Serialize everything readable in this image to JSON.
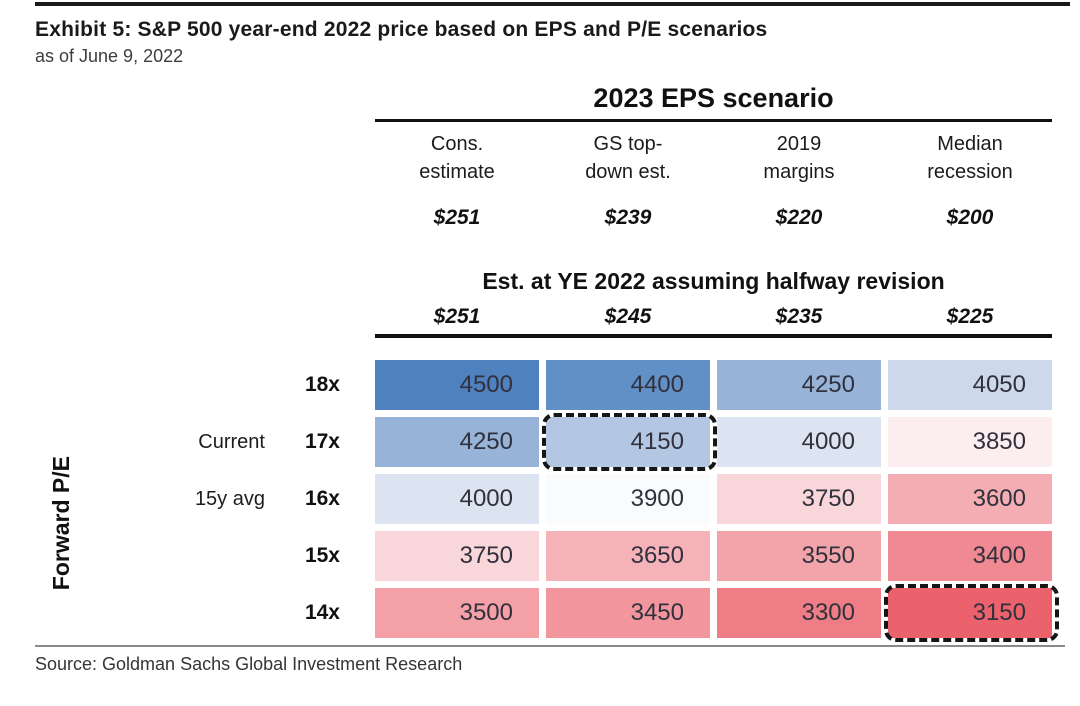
{
  "exhibit": {
    "title": "Exhibit 5: S&P 500 year-end 2022 price based on EPS and P/E scenarios",
    "subtitle": "as of June 9, 2022",
    "source": "Source: Goldman Sachs Global Investment Research"
  },
  "table": {
    "group_header": "2023 EPS scenario",
    "mid_header": "Est. at YE 2022 assuming halfway revision",
    "row_axis_title": "Forward P/E",
    "columns": [
      {
        "line1": "Cons.",
        "line2": "estimate",
        "eps_2023": "$251",
        "eps_ye2022": "$251"
      },
      {
        "line1": "GS top-",
        "line2": "down est.",
        "eps_2023": "$239",
        "eps_ye2022": "$245"
      },
      {
        "line1": "2019",
        "line2": "margins",
        "eps_2023": "$220",
        "eps_ye2022": "$235"
      },
      {
        "line1": "Median",
        "line2": "recession",
        "eps_2023": "$200",
        "eps_ye2022": "$225"
      }
    ],
    "rows": [
      {
        "pe": "18x",
        "note": "",
        "cells": [
          {
            "value": "4500",
            "color": "#4e81bd",
            "highlighted": false
          },
          {
            "value": "4400",
            "color": "#6190c6",
            "highlighted": false
          },
          {
            "value": "4250",
            "color": "#97b4d8",
            "highlighted": false
          },
          {
            "value": "4050",
            "color": "#cdd8ea",
            "highlighted": false
          }
        ]
      },
      {
        "pe": "17x",
        "note": "Current",
        "cells": [
          {
            "value": "4250",
            "color": "#97b4d8",
            "highlighted": false
          },
          {
            "value": "4150",
            "color": "#b3c7e2",
            "highlighted": true
          },
          {
            "value": "4000",
            "color": "#dce3f1",
            "highlighted": false
          },
          {
            "value": "3850",
            "color": "#fcedef",
            "highlighted": false
          }
        ]
      },
      {
        "pe": "16x",
        "note": "15y avg",
        "cells": [
          {
            "value": "4000",
            "color": "#dce3f1",
            "highlighted": false
          },
          {
            "value": "3900",
            "color": "#fafbfd",
            "highlighted": false
          },
          {
            "value": "3750",
            "color": "#f8d6da",
            "highlighted": false
          },
          {
            "value": "3600",
            "color": "#f4adb3",
            "highlighted": false
          }
        ]
      },
      {
        "pe": "15x",
        "note": "",
        "cells": [
          {
            "value": "3750",
            "color": "#f8d6da",
            "highlighted": false
          },
          {
            "value": "3650",
            "color": "#f5b3b9",
            "highlighted": false
          },
          {
            "value": "3550",
            "color": "#f3a4ab",
            "highlighted": false
          },
          {
            "value": "3400",
            "color": "#f08991",
            "highlighted": false
          }
        ]
      },
      {
        "pe": "14x",
        "note": "",
        "cells": [
          {
            "value": "3500",
            "color": "#f3a0a7",
            "highlighted": false
          },
          {
            "value": "3450",
            "color": "#f2959d",
            "highlighted": false
          },
          {
            "value": "3300",
            "color": "#ee7d86",
            "highlighted": false
          },
          {
            "value": "3150",
            "color": "#eb616c",
            "highlighted": true
          }
        ]
      }
    ]
  },
  "chart_data": {
    "type": "heatmap",
    "title": "S&P 500 year-end 2022 price based on EPS and P/E scenarios",
    "as_of": "as of June 9, 2022",
    "x_axis": {
      "title": "2023 EPS scenario",
      "categories": [
        "Cons. estimate",
        "GS top-down est.",
        "2019 margins",
        "Median recession"
      ],
      "eps_2023": [
        251,
        239,
        220,
        200
      ],
      "est_ye2022_halfway_revision": [
        251,
        245,
        235,
        225
      ]
    },
    "y_axis": {
      "title": "Forward P/E",
      "categories": [
        "18x",
        "17x",
        "16x",
        "15x",
        "14x"
      ],
      "annotations": {
        "17x": "Current",
        "16x": "15y avg"
      }
    },
    "values": [
      [
        4500,
        4400,
        4250,
        4050
      ],
      [
        4250,
        4150,
        4000,
        3850
      ],
      [
        4000,
        3900,
        3750,
        3600
      ],
      [
        3750,
        3650,
        3550,
        3400
      ],
      [
        3500,
        3450,
        3300,
        3150
      ]
    ],
    "highlighted_cells": [
      {
        "row": "17x",
        "column": "GS top-down est.",
        "value": 4150
      },
      {
        "row": "14x",
        "column": "Median recession",
        "value": 3150
      }
    ],
    "color_scale": {
      "high": "#4e81bd",
      "mid": "#fafbfd",
      "low": "#eb616c"
    },
    "legend_position": "none",
    "source": "Goldman Sachs Global Investment Research"
  }
}
